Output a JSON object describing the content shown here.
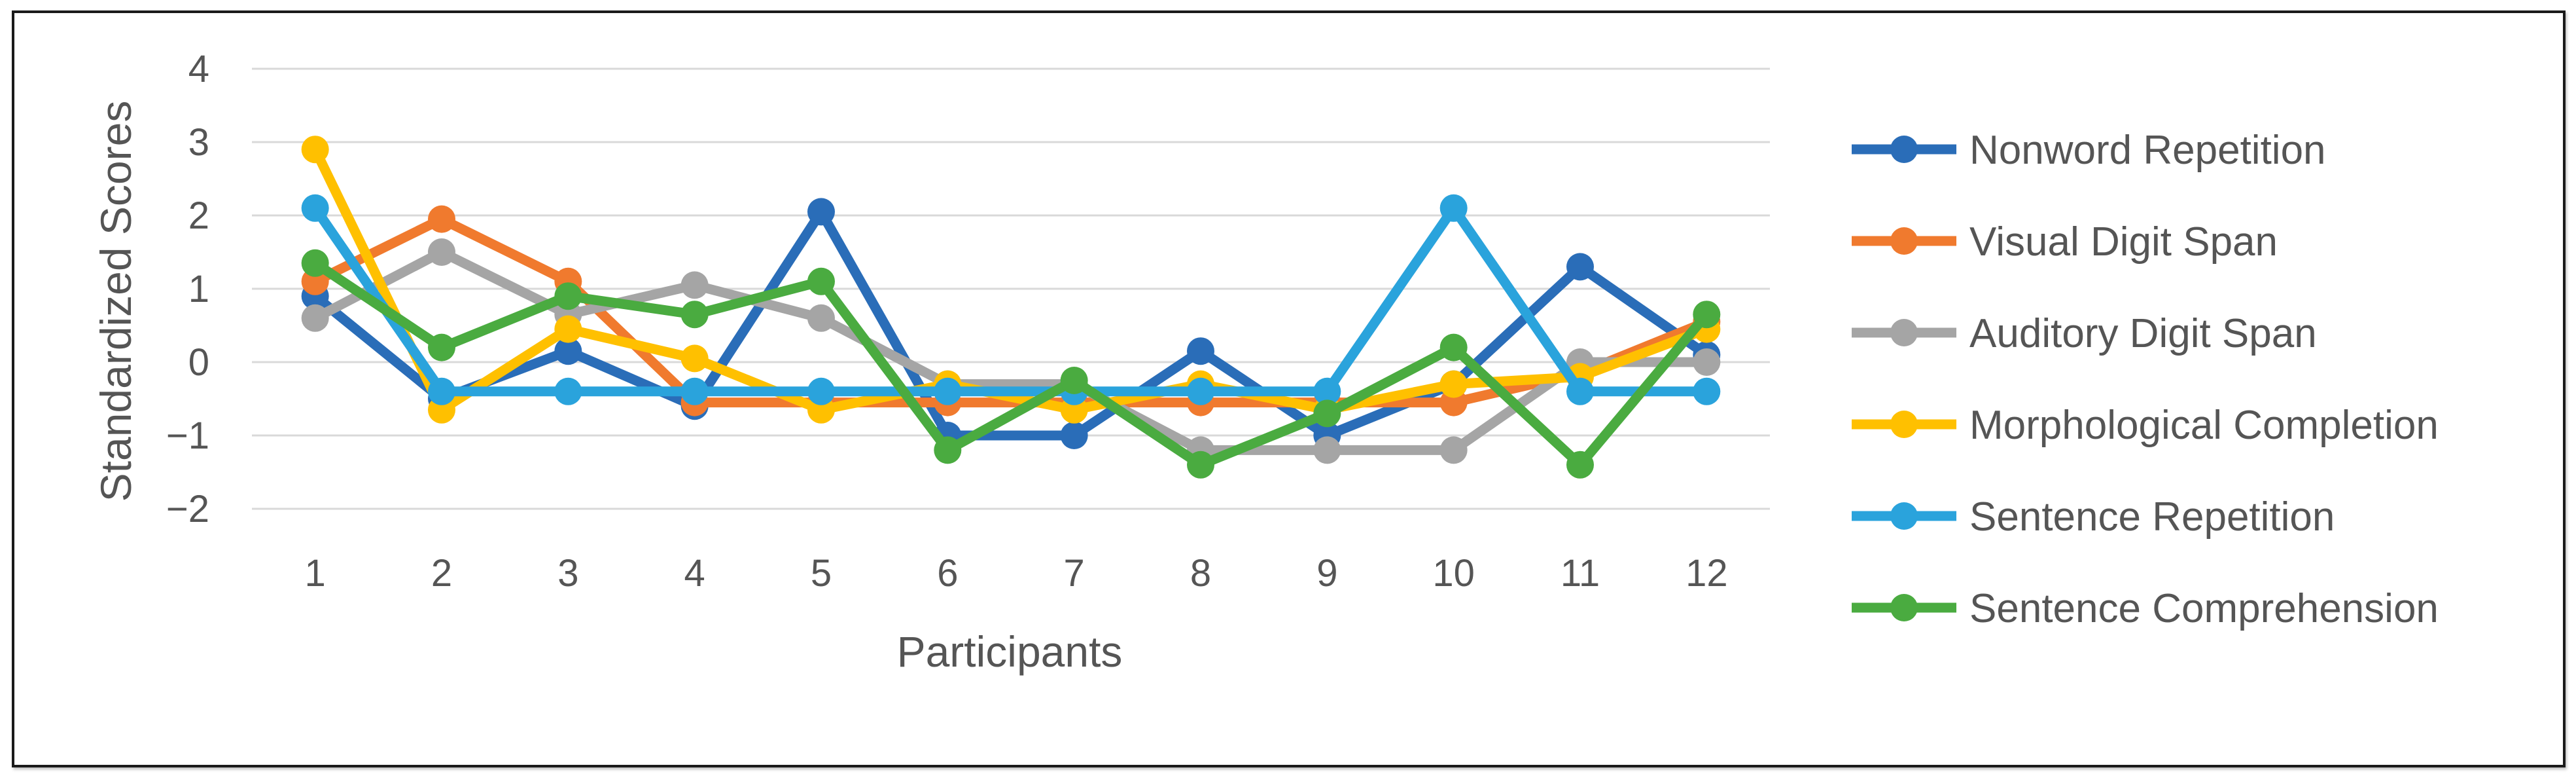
{
  "chart_data": {
    "type": "line",
    "title": "",
    "xlabel": "Participants",
    "ylabel": "Standardized Scores",
    "ylim": [
      -2,
      4
    ],
    "yticks": [
      "4",
      "3",
      "2",
      "1",
      "0",
      "−1",
      "−2"
    ],
    "x": [
      "1",
      "2",
      "3",
      "4",
      "5",
      "6",
      "7",
      "8",
      "9",
      "10",
      "11",
      "12"
    ],
    "grid": true,
    "legend_position": "right",
    "series": [
      {
        "name": "Nonword Repetition",
        "color": "#2a6db8",
        "values": [
          0.9,
          -0.5,
          0.15,
          -0.6,
          2.05,
          -1.0,
          -1.0,
          0.15,
          -1.0,
          -0.3,
          1.3,
          0.1
        ]
      },
      {
        "name": "Visual Digit Span",
        "color": "#f07a2e",
        "values": [
          1.1,
          1.95,
          1.1,
          -0.55,
          -0.55,
          -0.55,
          -0.55,
          -0.55,
          -0.55,
          -0.55,
          -0.15,
          0.55
        ]
      },
      {
        "name": "Auditory Digit Span",
        "color": "#a5a5a5",
        "values": [
          0.6,
          1.5,
          0.65,
          1.05,
          0.6,
          -0.3,
          -0.3,
          -1.2,
          -1.2,
          -1.2,
          0.0,
          0.0
        ]
      },
      {
        "name": "Morphological Completion",
        "color": "#ffc000",
        "values": [
          2.9,
          -0.65,
          0.45,
          0.05,
          -0.65,
          -0.3,
          -0.65,
          -0.3,
          -0.65,
          -0.3,
          -0.2,
          0.45
        ]
      },
      {
        "name": "Sentence Repetition",
        "color": "#2aa3dc",
        "values": [
          2.1,
          -0.4,
          -0.4,
          -0.4,
          -0.4,
          -0.4,
          -0.4,
          -0.4,
          -0.4,
          2.1,
          -0.4,
          -0.4
        ]
      },
      {
        "name": "Sentence Comprehension",
        "color": "#4aab40",
        "values": [
          1.35,
          0.2,
          0.9,
          0.65,
          1.1,
          -1.2,
          -0.25,
          -1.4,
          -0.7,
          0.2,
          -1.4,
          0.65
        ]
      }
    ]
  }
}
